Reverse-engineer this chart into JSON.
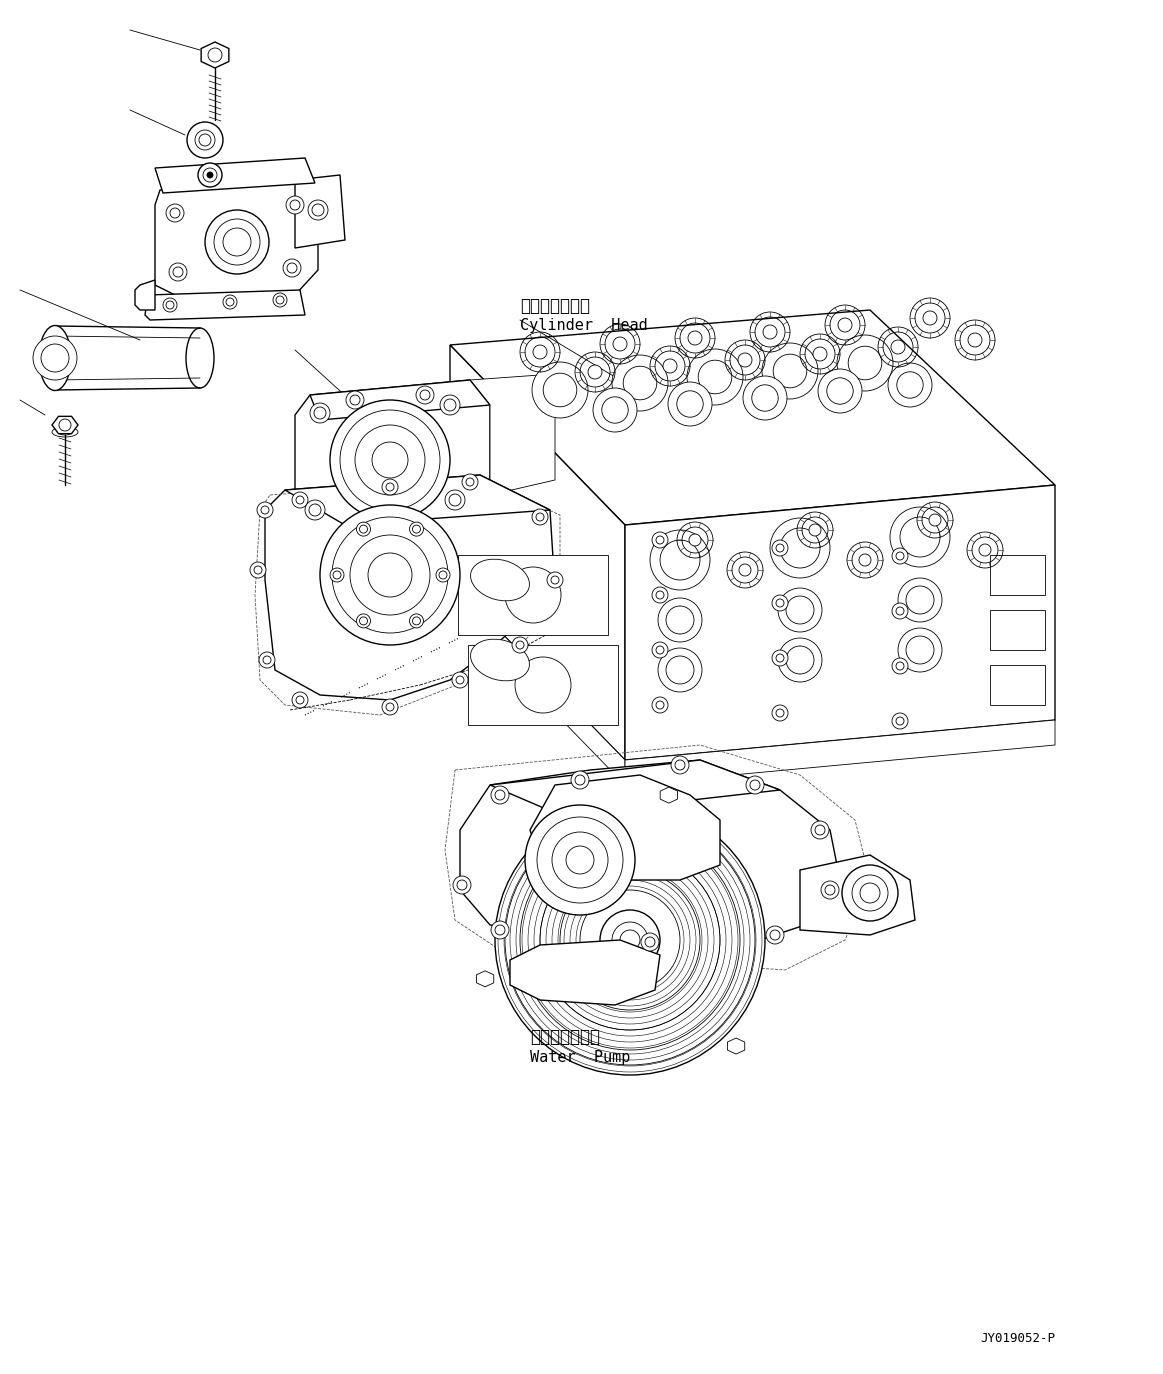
{
  "background_color": "#ffffff",
  "line_color": "#000000",
  "label_cylinder_head_jp": "シリンダヘッド",
  "label_cylinder_head_en": "Cylinder  Head",
  "label_water_pump_jp": "ウォータポンプ",
  "label_water_pump_en": "Water  Pump",
  "part_number": "JY019052-P",
  "fig_width": 11.63,
  "fig_height": 13.74,
  "dpi": 100
}
